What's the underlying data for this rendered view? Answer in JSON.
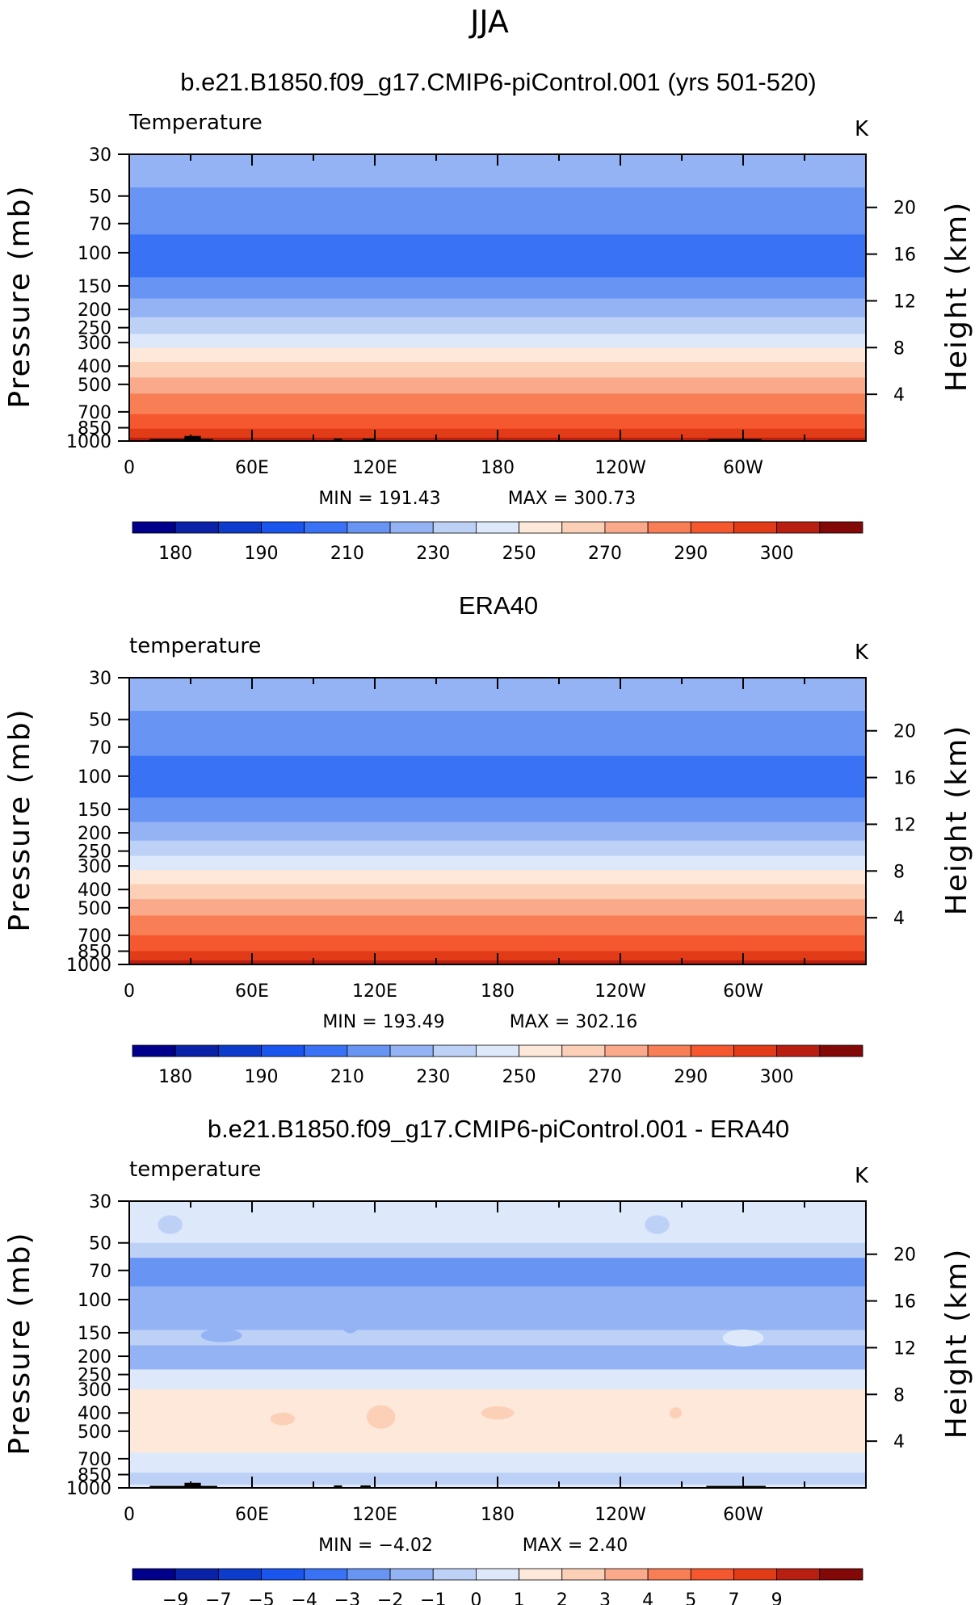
{
  "figure": {
    "title": "JJA"
  },
  "colors": {
    "temperature": [
      "#00008b",
      "#0a22a8",
      "#0d3bcc",
      "#1a55ee",
      "#3a72f5",
      "#6894f4",
      "#93b3f5",
      "#bdd1f7",
      "#dde9fb",
      "#fde8d9",
      "#fcd0b7",
      "#faaa8a",
      "#f87e56",
      "#f5582e",
      "#e23b18",
      "#b91f10",
      "#830808"
    ],
    "difference": [
      "#00008b",
      "#0a22a8",
      "#0d3bcc",
      "#1a55ee",
      "#3a72f5",
      "#6894f4",
      "#93b3f5",
      "#bdd1f7",
      "#dde9fb",
      "#fde8d9",
      "#fcd0b7",
      "#faaa8a",
      "#f87e56",
      "#f5582e",
      "#e23b18",
      "#b91f10",
      "#830808"
    ]
  },
  "chart_data": [
    {
      "type": "heatmap",
      "title": "b.e21.B1850.f09_g17.CMIP6-piControl.001 (yrs 501-520)",
      "subtitle": "Temperature",
      "units": "K",
      "ylabel": "Pressure (mb)",
      "y2label": "Height (km)",
      "x_ticks": [
        "0",
        "60E",
        "120E",
        "180",
        "120W",
        "60W"
      ],
      "y_ticks": [
        30,
        50,
        70,
        100,
        150,
        200,
        250,
        300,
        400,
        500,
        700,
        850,
        1000
      ],
      "y2_ticks": [
        20,
        16,
        12,
        8,
        4
      ],
      "min_label": "MIN = 191.43",
      "max_label": "MAX = 300.73",
      "colorbar_labels": [
        "180",
        "190",
        "210",
        "230",
        "250",
        "270",
        "290",
        "300"
      ],
      "bands": [
        {
          "p_top": 30,
          "p_bottom": 45,
          "color_index": 6
        },
        {
          "p_top": 45,
          "p_bottom": 80,
          "color_index": 5
        },
        {
          "p_top": 80,
          "p_bottom": 135,
          "color_index": 4
        },
        {
          "p_top": 135,
          "p_bottom": 175,
          "color_index": 5
        },
        {
          "p_top": 175,
          "p_bottom": 220,
          "color_index": 6
        },
        {
          "p_top": 220,
          "p_bottom": 270,
          "color_index": 7
        },
        {
          "p_top": 270,
          "p_bottom": 320,
          "color_index": 8
        },
        {
          "p_top": 320,
          "p_bottom": 380,
          "color_index": 9
        },
        {
          "p_top": 380,
          "p_bottom": 460,
          "color_index": 10
        },
        {
          "p_top": 460,
          "p_bottom": 560,
          "color_index": 11
        },
        {
          "p_top": 560,
          "p_bottom": 720,
          "color_index": 12
        },
        {
          "p_top": 720,
          "p_bottom": 860,
          "color_index": 13
        },
        {
          "p_top": 860,
          "p_bottom": 960,
          "color_index": 14
        },
        {
          "p_top": 960,
          "p_bottom": 1000,
          "color_index": 15
        }
      ],
      "blobs": [],
      "topography": [
        {
          "lon_start": 10,
          "lon_end": 41,
          "p_top": 975
        },
        {
          "lon_start": 27,
          "lon_end": 35,
          "p_top": 940
        },
        {
          "lon_start": 100,
          "lon_end": 104,
          "p_top": 970
        },
        {
          "lon_start": 114,
          "lon_end": 120,
          "p_top": 970
        },
        {
          "lon_start": 283,
          "lon_end": 309,
          "p_top": 975
        }
      ]
    },
    {
      "type": "heatmap",
      "title": "ERA40",
      "subtitle": "temperature",
      "units": "K",
      "ylabel": "Pressure (mb)",
      "y2label": "Height (km)",
      "x_ticks": [
        "0",
        "60E",
        "120E",
        "180",
        "120W",
        "60W"
      ],
      "y_ticks": [
        30,
        50,
        70,
        100,
        150,
        200,
        250,
        300,
        400,
        500,
        700,
        850,
        1000
      ],
      "y2_ticks": [
        20,
        16,
        12,
        8,
        4
      ],
      "min_label": "MIN = 193.49",
      "max_label": "MAX = 302.16",
      "colorbar_labels": [
        "180",
        "190",
        "210",
        "230",
        "250",
        "270",
        "290",
        "300"
      ],
      "bands": [
        {
          "p_top": 30,
          "p_bottom": 45,
          "color_index": 6
        },
        {
          "p_top": 45,
          "p_bottom": 78,
          "color_index": 5
        },
        {
          "p_top": 78,
          "p_bottom": 130,
          "color_index": 4
        },
        {
          "p_top": 130,
          "p_bottom": 175,
          "color_index": 5
        },
        {
          "p_top": 175,
          "p_bottom": 220,
          "color_index": 6
        },
        {
          "p_top": 220,
          "p_bottom": 265,
          "color_index": 7
        },
        {
          "p_top": 265,
          "p_bottom": 315,
          "color_index": 8
        },
        {
          "p_top": 315,
          "p_bottom": 375,
          "color_index": 9
        },
        {
          "p_top": 375,
          "p_bottom": 450,
          "color_index": 10
        },
        {
          "p_top": 450,
          "p_bottom": 550,
          "color_index": 11
        },
        {
          "p_top": 550,
          "p_bottom": 700,
          "color_index": 12
        },
        {
          "p_top": 700,
          "p_bottom": 850,
          "color_index": 13
        },
        {
          "p_top": 850,
          "p_bottom": 950,
          "color_index": 14
        },
        {
          "p_top": 950,
          "p_bottom": 1000,
          "color_index": 15
        }
      ],
      "blobs": [],
      "topography": []
    },
    {
      "type": "heatmap",
      "title": "b.e21.B1850.f09_g17.CMIP6-piControl.001 - ERA40",
      "subtitle": "temperature",
      "units": "K",
      "ylabel": "Pressure (mb)",
      "y2label": "Height (km)",
      "x_ticks": [
        "0",
        "60E",
        "120E",
        "180",
        "120W",
        "60W"
      ],
      "y_ticks": [
        30,
        50,
        70,
        100,
        150,
        200,
        250,
        300,
        400,
        500,
        700,
        850,
        1000
      ],
      "y2_ticks": [
        20,
        16,
        12,
        8,
        4
      ],
      "min_label": "MIN = −4.02",
      "max_label": "MAX = 2.40",
      "colorbar_labels": [
        "−9",
        "−7",
        "−5",
        "−4",
        "−3",
        "−2",
        "−1",
        "0",
        "1",
        "2",
        "3",
        "4",
        "5",
        "7",
        "9"
      ],
      "bands": [
        {
          "p_top": 30,
          "p_bottom": 50,
          "color_index": 8
        },
        {
          "p_top": 50,
          "p_bottom": 60,
          "color_index": 7
        },
        {
          "p_top": 60,
          "p_bottom": 85,
          "color_index": 5
        },
        {
          "p_top": 85,
          "p_bottom": 145,
          "color_index": 6
        },
        {
          "p_top": 145,
          "p_bottom": 175,
          "color_index": 7
        },
        {
          "p_top": 175,
          "p_bottom": 235,
          "color_index": 6
        },
        {
          "p_top": 235,
          "p_bottom": 300,
          "color_index": 8
        },
        {
          "p_top": 300,
          "p_bottom": 650,
          "color_index": 9
        },
        {
          "p_top": 650,
          "p_bottom": 830,
          "color_index": 8
        },
        {
          "p_top": 830,
          "p_bottom": 960,
          "color_index": 7
        },
        {
          "p_top": 960,
          "p_bottom": 1000,
          "color_index": 8
        }
      ],
      "blobs": [
        {
          "lon": 45,
          "p": 155,
          "rx_deg": 10,
          "ry_mb": 10,
          "color_index": 6
        },
        {
          "lon": 300,
          "p": 160,
          "rx_deg": 10,
          "ry_mb": 14,
          "color_index": 8
        },
        {
          "lon": 108,
          "p": 120,
          "rx_deg": 6,
          "ry_mb": 28,
          "color_index": 6
        },
        {
          "lon": 123,
          "p": 420,
          "rx_deg": 7,
          "ry_mb": 55,
          "color_index": 10
        },
        {
          "lon": 75,
          "p": 430,
          "rx_deg": 6,
          "ry_mb": 25,
          "color_index": 10
        },
        {
          "lon": 180,
          "p": 400,
          "rx_deg": 8,
          "ry_mb": 25,
          "color_index": 10
        },
        {
          "lon": 267,
          "p": 400,
          "rx_deg": 3,
          "ry_mb": 20,
          "color_index": 10
        },
        {
          "lon": 20,
          "p": 40,
          "rx_deg": 6,
          "ry_mb": 4,
          "color_index": 7
        },
        {
          "lon": 258,
          "p": 40,
          "rx_deg": 6,
          "ry_mb": 4,
          "color_index": 7
        },
        {
          "lon": 60,
          "p": 900,
          "rx_deg": 10,
          "ry_mb": 18,
          "color_index": 7
        },
        {
          "lon": 240,
          "p": 900,
          "rx_deg": 25,
          "ry_mb": 18,
          "color_index": 7
        }
      ],
      "topography": [
        {
          "lon_start": 10,
          "lon_end": 43,
          "p_top": 975
        },
        {
          "lon_start": 27,
          "lon_end": 35,
          "p_top": 940
        },
        {
          "lon_start": 100,
          "lon_end": 104,
          "p_top": 970
        },
        {
          "lon_start": 113,
          "lon_end": 118,
          "p_top": 970
        },
        {
          "lon_start": 282,
          "lon_end": 311,
          "p_top": 975
        }
      ]
    }
  ]
}
